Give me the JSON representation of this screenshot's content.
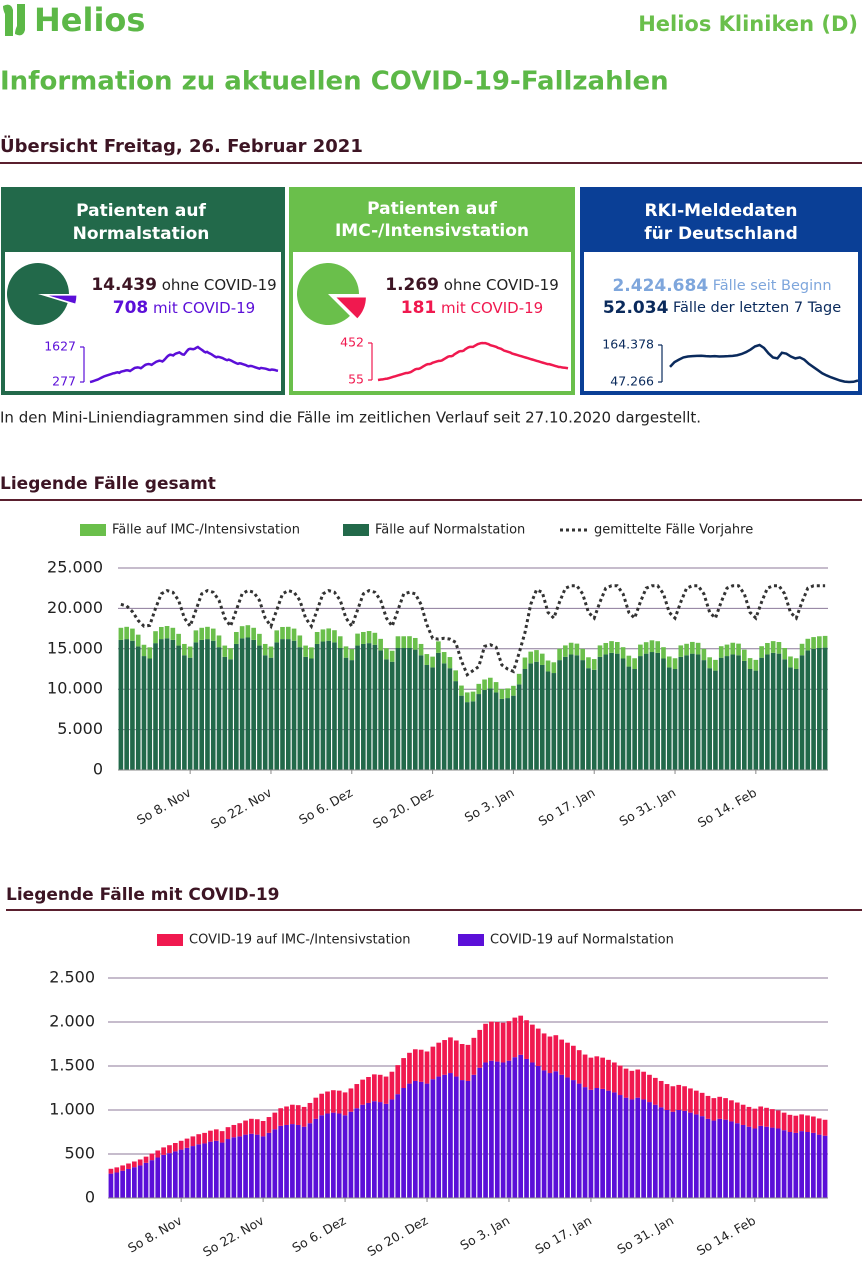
{
  "header": {
    "logo": "Helios",
    "org": "Helios Kliniken (D)",
    "title": "Information zu aktuellen COVID-19-Fallzahlen",
    "subtitle": "Übersicht Freitag, 26. Februar 2021"
  },
  "cards": [
    {
      "title": [
        "Patienten auf",
        "Normalstation"
      ],
      "values": [
        14439,
        708
      ],
      "value_labels": [
        "14.439",
        "708"
      ],
      "labels": [
        "ohne COVID-19",
        "mit COVID-19"
      ],
      "colors": [
        "#22694a",
        "#5b0fd8"
      ],
      "line": {
        "ylim": [
          277,
          1627
        ],
        "yticks": [
          1627,
          277
        ]
      }
    },
    {
      "title": [
        "Patienten auf",
        "IMC-/Intensivstation"
      ],
      "values": [
        1269,
        181
      ],
      "value_labels": [
        "1.269",
        "181"
      ],
      "labels": [
        "ohne COVID-19",
        "mit COVID-19"
      ],
      "colors": [
        "#6abf4b",
        "#f0194f"
      ],
      "line": {
        "ylim": [
          55,
          452
        ],
        "yticks": [
          452,
          55
        ]
      }
    },
    {
      "title": [
        "RKI-Meldedaten",
        "für Deutschland"
      ],
      "lines": [
        {
          "value": "2.424.684",
          "text": "Fälle seit Beginn"
        },
        {
          "value": "52.034",
          "text": "Fälle der letzten 7 Tage"
        }
      ],
      "colors": [
        "#7ea6dc",
        "#0a2a5c"
      ],
      "line": {
        "ylim": [
          47266,
          164378
        ],
        "yticks": [
          {
            "value": 164378,
            "label": "164.378"
          },
          {
            "value": 47266,
            "label": "47.266"
          }
        ],
        "values": [
          95000,
          110000,
          118000,
          125000,
          128000,
          129000,
          130000,
          130500,
          129000,
          128500,
          129000,
          128000,
          128500,
          129000,
          130000,
          132000,
          136000,
          142000,
          150000,
          160000,
          164378,
          155000,
          138000,
          125000,
          122000,
          140000,
          137000,
          128000,
          122000,
          125000,
          118000,
          105000,
          95000,
          85000,
          75000,
          68000,
          62000,
          57000,
          52000,
          48500,
          47266,
          48000,
          52034
        ]
      }
    }
  ],
  "note": "In den Mini-Liniendiagrammen sind die Fälle im zeitlichen Verlauf seit 27.10.2020 dargestellt.",
  "chart_data": [
    {
      "type": "bar",
      "stacked": true,
      "title": "Liegende Fälle gesamt",
      "categories": [
        null,
        null,
        null,
        null,
        null,
        null,
        null,
        null,
        null,
        null,
        null,
        null,
        "So 8. Nov",
        null,
        null,
        null,
        null,
        null,
        null,
        null,
        null,
        null,
        null,
        null,
        null,
        null,
        "So 22. Nov",
        null,
        null,
        null,
        null,
        null,
        null,
        null,
        null,
        null,
        null,
        null,
        null,
        null,
        "So 6. Dez",
        null,
        null,
        null,
        null,
        null,
        null,
        null,
        null,
        null,
        null,
        null,
        null,
        null,
        "So 20. Dez",
        null,
        null,
        null,
        null,
        null,
        null,
        null,
        null,
        null,
        null,
        null,
        null,
        null,
        "So 3. Jan",
        null,
        null,
        null,
        null,
        null,
        null,
        null,
        null,
        null,
        null,
        null,
        null,
        null,
        "So 17. Jan",
        null,
        null,
        null,
        null,
        null,
        null,
        null,
        null,
        null,
        null,
        null,
        null,
        null,
        "So 31. Jan",
        null,
        null,
        null,
        null,
        null,
        null,
        null,
        null,
        null,
        null,
        null,
        null,
        null,
        "So 14. Feb",
        null,
        null,
        null,
        null,
        null,
        null,
        null,
        null,
        null,
        null,
        null,
        null
      ],
      "series": [
        {
          "name": "Fälle auf IMC-/Intensivstation",
          "color": "#6abf4b",
          "values": [
            1500,
            1520,
            1500,
            1450,
            1400,
            1380,
            1480,
            1500,
            1520,
            1500,
            1450,
            1400,
            1380,
            1480,
            1500,
            1520,
            1500,
            1450,
            1400,
            1380,
            1480,
            1500,
            1520,
            1500,
            1450,
            1400,
            1380,
            1480,
            1500,
            1520,
            1500,
            1450,
            1400,
            1380,
            1480,
            1500,
            1520,
            1500,
            1450,
            1400,
            1380,
            1480,
            1480,
            1500,
            1480,
            1430,
            1380,
            1360,
            1450,
            1450,
            1460,
            1440,
            1400,
            1350,
            1330,
            1420,
            1400,
            1380,
            1330,
            1250,
            1200,
            1200,
            1260,
            1300,
            1320,
            1280,
            1220,
            1200,
            1220,
            1300,
            1420,
            1450,
            1440,
            1400,
            1350,
            1330,
            1420,
            1420,
            1450,
            1440,
            1400,
            1350,
            1330,
            1420,
            1420,
            1450,
            1440,
            1400,
            1350,
            1330,
            1420,
            1420,
            1450,
            1440,
            1400,
            1350,
            1330,
            1420,
            1420,
            1450,
            1440,
            1400,
            1350,
            1330,
            1420,
            1420,
            1450,
            1440,
            1400,
            1350,
            1330,
            1420,
            1420,
            1450,
            1440,
            1400,
            1350,
            1330,
            1420,
            1440,
            1450,
            1450,
            1450
          ]
        },
        {
          "name": "Fälle auf Normalstation",
          "color": "#22694a",
          "values": [
            16100,
            16200,
            16000,
            15300,
            14100,
            13800,
            15700,
            16200,
            16300,
            16100,
            15400,
            14200,
            13900,
            15800,
            16100,
            16200,
            16000,
            15200,
            14000,
            13700,
            15600,
            16300,
            16400,
            16100,
            15400,
            14200,
            13900,
            15800,
            16200,
            16200,
            16000,
            15200,
            14000,
            13800,
            15600,
            15900,
            16000,
            15800,
            15100,
            13900,
            13600,
            15400,
            15600,
            15700,
            15500,
            14800,
            13700,
            13400,
            15100,
            15100,
            15100,
            14900,
            14200,
            13000,
            12700,
            14500,
            13200,
            12600,
            11000,
            9200,
            8400,
            8500,
            9400,
            9900,
            10100,
            9600,
            8800,
            8900,
            9200,
            10600,
            12500,
            13200,
            13400,
            13000,
            12200,
            12000,
            13600,
            14000,
            14300,
            14200,
            13600,
            12600,
            12400,
            14000,
            14300,
            14500,
            14400,
            13800,
            12800,
            12500,
            14100,
            14400,
            14600,
            14500,
            13800,
            12700,
            12500,
            14000,
            14200,
            14400,
            14300,
            13600,
            12600,
            12300,
            13900,
            14100,
            14300,
            14200,
            13500,
            12500,
            12300,
            13900,
            14300,
            14500,
            14400,
            13700,
            12700,
            12500,
            14200,
            14800,
            15000,
            15100,
            15147
          ]
        },
        {
          "name": "gemittelte Fälle Vorjahre",
          "type": "line",
          "dashed": true,
          "color": "#333333",
          "values": [
            20500,
            20300,
            19600,
            18500,
            17800,
            17900,
            20000,
            21800,
            22200,
            22000,
            21000,
            18800,
            17800,
            19800,
            21800,
            22200,
            22000,
            21000,
            18800,
            17800,
            19800,
            21800,
            22200,
            22000,
            21000,
            18800,
            17800,
            19800,
            21800,
            22200,
            22000,
            21000,
            18800,
            17800,
            19800,
            21800,
            22200,
            22000,
            21000,
            18800,
            17800,
            19800,
            21800,
            22200,
            22000,
            21000,
            18800,
            17800,
            19800,
            21800,
            22000,
            21800,
            20500,
            18000,
            16300,
            16200,
            16300,
            16200,
            15800,
            13500,
            11800,
            12300,
            12800,
            15300,
            15500,
            15200,
            13000,
            12500,
            12200,
            14500,
            17000,
            20500,
            22300,
            22000,
            19500,
            18800,
            20800,
            22500,
            22800,
            22800,
            21800,
            19500,
            18800,
            20800,
            22500,
            22800,
            22800,
            21800,
            19500,
            18800,
            20800,
            22500,
            22800,
            22800,
            21800,
            19500,
            18800,
            20800,
            22500,
            22800,
            22800,
            21800,
            19500,
            18800,
            20800,
            22500,
            22800,
            22800,
            21800,
            19500,
            18800,
            20800,
            22500,
            22800,
            22800,
            21800,
            19500,
            18800,
            20800,
            22500,
            22800,
            22800,
            22800
          ]
        }
      ],
      "ylim": [
        0,
        25000
      ],
      "yticks": [
        0,
        {
          "value": 5000,
          "label": "5.000"
        },
        {
          "value": 10000,
          "label": "10.000"
        },
        {
          "value": 15000,
          "label": "15.000"
        },
        {
          "value": 20000,
          "label": "20.000"
        },
        {
          "value": 25000,
          "label": "25.000"
        }
      ],
      "grid": true
    },
    {
      "type": "bar",
      "stacked": true,
      "title": "Liegende Fälle mit COVID-19",
      "categories": [
        null,
        null,
        null,
        null,
        null,
        null,
        null,
        null,
        null,
        null,
        null,
        null,
        "So 8. Nov",
        null,
        null,
        null,
        null,
        null,
        null,
        null,
        null,
        null,
        null,
        null,
        null,
        null,
        "So 22. Nov",
        null,
        null,
        null,
        null,
        null,
        null,
        null,
        null,
        null,
        null,
        null,
        null,
        null,
        "So 6. Dez",
        null,
        null,
        null,
        null,
        null,
        null,
        null,
        null,
        null,
        null,
        null,
        null,
        null,
        "So 20. Dez",
        null,
        null,
        null,
        null,
        null,
        null,
        null,
        null,
        null,
        null,
        null,
        null,
        null,
        "So 3. Jan",
        null,
        null,
        null,
        null,
        null,
        null,
        null,
        null,
        null,
        null,
        null,
        null,
        null,
        "So 17. Jan",
        null,
        null,
        null,
        null,
        null,
        null,
        null,
        null,
        null,
        null,
        null,
        null,
        null,
        "So 31. Jan",
        null,
        null,
        null,
        null,
        null,
        null,
        null,
        null,
        null,
        null,
        null,
        null,
        null,
        "So 14. Feb",
        null,
        null,
        null,
        null,
        null,
        null,
        null,
        null,
        null,
        null,
        null,
        null
      ],
      "series": [
        {
          "name": "COVID-19 auf IMC-/Intensivstation",
          "color": "#f0194f",
          "values": [
            55,
            58,
            60,
            62,
            65,
            68,
            70,
            75,
            80,
            85,
            90,
            95,
            100,
            105,
            110,
            115,
            120,
            125,
            130,
            130,
            135,
            140,
            150,
            160,
            170,
            175,
            175,
            180,
            190,
            200,
            210,
            220,
            225,
            225,
            230,
            240,
            245,
            250,
            255,
            260,
            260,
            265,
            275,
            285,
            295,
            305,
            310,
            310,
            315,
            330,
            340,
            350,
            360,
            365,
            365,
            370,
            385,
            395,
            405,
            410,
            410,
            410,
            420,
            430,
            440,
            445,
            450,
            452,
            450,
            450,
            445,
            440,
            430,
            425,
            420,
            415,
            410,
            400,
            395,
            390,
            380,
            370,
            365,
            360,
            355,
            350,
            340,
            335,
            330,
            325,
            320,
            315,
            310,
            305,
            300,
            295,
            290,
            285,
            280,
            275,
            270,
            265,
            260,
            255,
            250,
            245,
            240,
            235,
            230,
            225,
            225,
            220,
            215,
            210,
            205,
            200,
            195,
            195,
            190,
            188,
            186,
            184,
            181
          ]
        },
        {
          "name": "COVID-19 auf Normalstation",
          "color": "#5b0fd8",
          "values": [
            277,
            290,
            310,
            330,
            350,
            370,
            400,
            430,
            460,
            490,
            510,
            530,
            550,
            570,
            590,
            610,
            620,
            640,
            650,
            630,
            670,
            690,
            700,
            720,
            730,
            720,
            700,
            740,
            780,
            820,
            830,
            840,
            830,
            810,
            850,
            900,
            940,
            960,
            970,
            960,
            940,
            980,
            1020,
            1060,
            1080,
            1100,
            1090,
            1070,
            1120,
            1180,
            1250,
            1300,
            1330,
            1320,
            1300,
            1350,
            1380,
            1400,
            1420,
            1380,
            1340,
            1330,
            1400,
            1480,
            1540,
            1560,
            1550,
            1540,
            1560,
            1600,
            1627,
            1580,
            1540,
            1500,
            1450,
            1420,
            1440,
            1400,
            1370,
            1340,
            1300,
            1260,
            1230,
            1250,
            1240,
            1220,
            1200,
            1170,
            1140,
            1120,
            1140,
            1120,
            1090,
            1060,
            1030,
            1000,
            980,
            1000,
            990,
            970,
            950,
            930,
            900,
            880,
            900,
            890,
            870,
            850,
            830,
            810,
            790,
            820,
            810,
            800,
            790,
            770,
            750,
            740,
            760,
            750,
            740,
            720,
            708
          ]
        }
      ],
      "ylim": [
        0,
        2500
      ],
      "yticks": [
        0,
        500,
        {
          "value": 1000,
          "label": "1.000"
        },
        {
          "value": 1500,
          "label": "1.500"
        },
        {
          "value": 2000,
          "label": "2.000"
        },
        {
          "value": 2500,
          "label": "2.500"
        }
      ],
      "grid": true
    }
  ]
}
